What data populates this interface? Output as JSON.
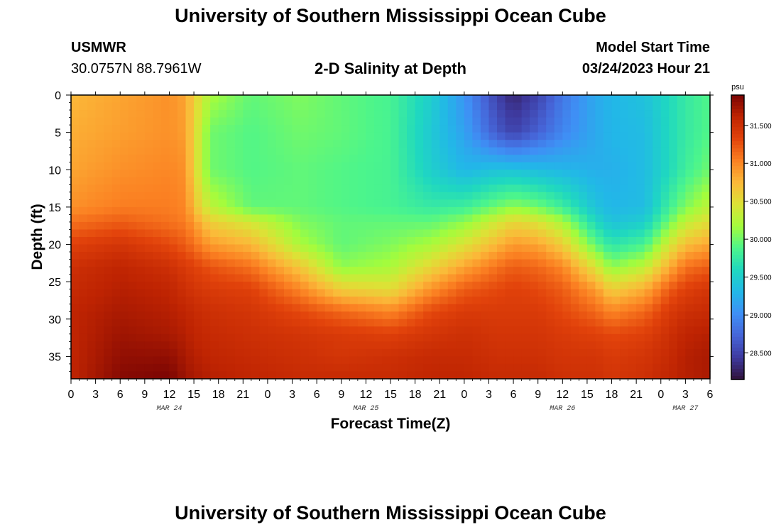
{
  "header": {
    "title": "University of Southern Mississippi Ocean Cube",
    "station_name": "USMWR",
    "station_coords": "30.0757N  88.7961W",
    "plot_title": "2-D Salinity at Depth",
    "model_start_label": "Model Start Time",
    "model_start_value": "03/24/2023 Hour 21"
  },
  "footer": {
    "title": "University of Southern Mississippi Ocean Cube"
  },
  "colors": {
    "jet": [
      "#30123b",
      "#3e3a9f",
      "#4665d8",
      "#3f8ff5",
      "#22b7e8",
      "#1fd8c0",
      "#4cf58c",
      "#a4fc3c",
      "#dce236",
      "#fbb939",
      "#fb8022",
      "#e2430b",
      "#bf2402",
      "#7a0403"
    ]
  },
  "chart_data": {
    "type": "heatmap",
    "title": "2-D Salinity at Depth",
    "xlabel": "Forecast Time(Z)",
    "ylabel": "Depth (ft)",
    "xlim": [
      0,
      78
    ],
    "ylim": [
      0,
      38
    ],
    "x_ticks": [
      0,
      3,
      6,
      9,
      12,
      15,
      18,
      21,
      24,
      27,
      30,
      33,
      36,
      39,
      42,
      45,
      48,
      51,
      54,
      57,
      60,
      63,
      66,
      69,
      72,
      75,
      78
    ],
    "x_tick_labels": [
      "0",
      "3",
      "6",
      "9",
      "12",
      "15",
      "18",
      "21",
      "0",
      "3",
      "6",
      "9",
      "12",
      "15",
      "18",
      "21",
      "0",
      "3",
      "6",
      "9",
      "12",
      "15",
      "18",
      "21",
      "0",
      "3",
      "6"
    ],
    "y_ticks": [
      0,
      5,
      10,
      15,
      20,
      25,
      30,
      35
    ],
    "y_tick_labels": [
      "0",
      "5",
      "10",
      "15",
      "20",
      "25",
      "30",
      "35"
    ],
    "date_labels": [
      {
        "x": 12,
        "text": "MAR 24"
      },
      {
        "x": 36,
        "text": "MAR 25"
      },
      {
        "x": 60,
        "text": "MAR 26"
      },
      {
        "x": 75,
        "text": "MAR 27"
      }
    ],
    "colorbar": {
      "unit": "psu",
      "range": [
        28.15,
        31.9
      ],
      "ticks": [
        28.5,
        29.0,
        29.5,
        30.0,
        30.5,
        31.0,
        31.5
      ],
      "tick_labels": [
        "28.500",
        "29.000",
        "29.500",
        "30.000",
        "30.500",
        "31.000",
        "31.500"
      ]
    },
    "profile_times": [
      0,
      6,
      12,
      14,
      15,
      17,
      22,
      28,
      33,
      39,
      44,
      48,
      52,
      54,
      57,
      60,
      64,
      66,
      70,
      73,
      75,
      78
    ],
    "profile_depths": [
      0,
      5,
      10,
      15,
      17,
      20,
      23,
      26,
      29,
      32,
      35,
      38
    ],
    "salinity_profiles": [
      [
        30.75,
        30.8,
        30.85,
        30.95,
        31.1,
        31.35,
        31.5,
        31.55,
        31.6,
        31.6,
        31.6,
        31.6
      ],
      [
        30.85,
        30.88,
        30.95,
        31.05,
        31.2,
        31.45,
        31.6,
        31.65,
        31.7,
        31.75,
        31.8,
        31.85
      ],
      [
        30.95,
        30.95,
        31.0,
        31.05,
        31.1,
        31.3,
        31.5,
        31.6,
        31.65,
        31.7,
        31.8,
        31.9
      ],
      [
        30.85,
        30.88,
        30.95,
        31.0,
        31.05,
        31.2,
        31.4,
        31.5,
        31.6,
        31.65,
        31.7,
        31.75
      ],
      [
        30.6,
        30.55,
        30.55,
        30.7,
        30.9,
        31.1,
        31.35,
        31.45,
        31.55,
        31.6,
        31.65,
        31.7
      ],
      [
        30.2,
        30.0,
        30.0,
        30.3,
        30.6,
        30.9,
        31.25,
        31.4,
        31.5,
        31.55,
        31.6,
        31.65
      ],
      [
        29.95,
        29.9,
        29.9,
        29.95,
        30.4,
        30.75,
        31.1,
        31.35,
        31.45,
        31.5,
        31.55,
        31.6
      ],
      [
        30.05,
        30.0,
        29.95,
        29.95,
        30.05,
        30.2,
        30.65,
        31.0,
        31.3,
        31.45,
        31.5,
        31.55
      ],
      [
        29.95,
        29.95,
        29.9,
        29.9,
        29.95,
        29.95,
        30.1,
        30.6,
        31.15,
        31.4,
        31.45,
        31.55
      ],
      [
        29.85,
        29.85,
        29.85,
        29.85,
        29.95,
        30.05,
        30.2,
        30.5,
        31.0,
        31.35,
        31.5,
        31.55
      ],
      [
        29.5,
        29.45,
        29.5,
        29.75,
        29.95,
        30.2,
        30.55,
        30.95,
        31.3,
        31.45,
        31.55,
        31.6
      ],
      [
        29.05,
        29.15,
        29.3,
        29.8,
        30.1,
        30.45,
        30.85,
        31.2,
        31.4,
        31.5,
        31.55,
        31.6
      ],
      [
        28.5,
        28.65,
        29.4,
        30.0,
        30.4,
        30.75,
        31.1,
        31.3,
        31.4,
        31.45,
        31.5,
        31.55
      ],
      [
        28.3,
        28.5,
        29.4,
        30.1,
        30.55,
        30.9,
        31.2,
        31.35,
        31.4,
        31.45,
        31.5,
        31.55
      ],
      [
        28.5,
        28.7,
        29.35,
        30.0,
        30.45,
        30.85,
        31.15,
        31.3,
        31.4,
        31.45,
        31.5,
        31.55
      ],
      [
        28.85,
        28.95,
        29.3,
        29.8,
        30.2,
        30.6,
        31.0,
        31.2,
        31.3,
        31.4,
        31.45,
        31.5
      ],
      [
        29.2,
        29.2,
        29.25,
        29.4,
        29.6,
        29.95,
        30.45,
        30.9,
        31.15,
        31.35,
        31.45,
        31.5
      ],
      [
        29.3,
        29.3,
        29.25,
        29.3,
        29.4,
        29.7,
        30.1,
        30.6,
        31.0,
        31.3,
        31.4,
        31.45
      ],
      [
        29.4,
        29.35,
        29.35,
        29.35,
        29.5,
        29.85,
        30.3,
        30.8,
        31.15,
        31.35,
        31.45,
        31.5
      ],
      [
        29.6,
        29.6,
        29.6,
        29.8,
        30.0,
        30.4,
        30.8,
        31.2,
        31.4,
        31.5,
        31.55,
        31.6
      ],
      [
        29.75,
        29.75,
        29.8,
        30.05,
        30.3,
        30.7,
        31.1,
        31.35,
        31.5,
        31.6,
        31.65,
        31.65
      ],
      [
        29.9,
        29.9,
        30.0,
        30.3,
        30.5,
        30.85,
        31.2,
        31.45,
        31.55,
        31.65,
        31.7,
        31.7
      ]
    ]
  }
}
